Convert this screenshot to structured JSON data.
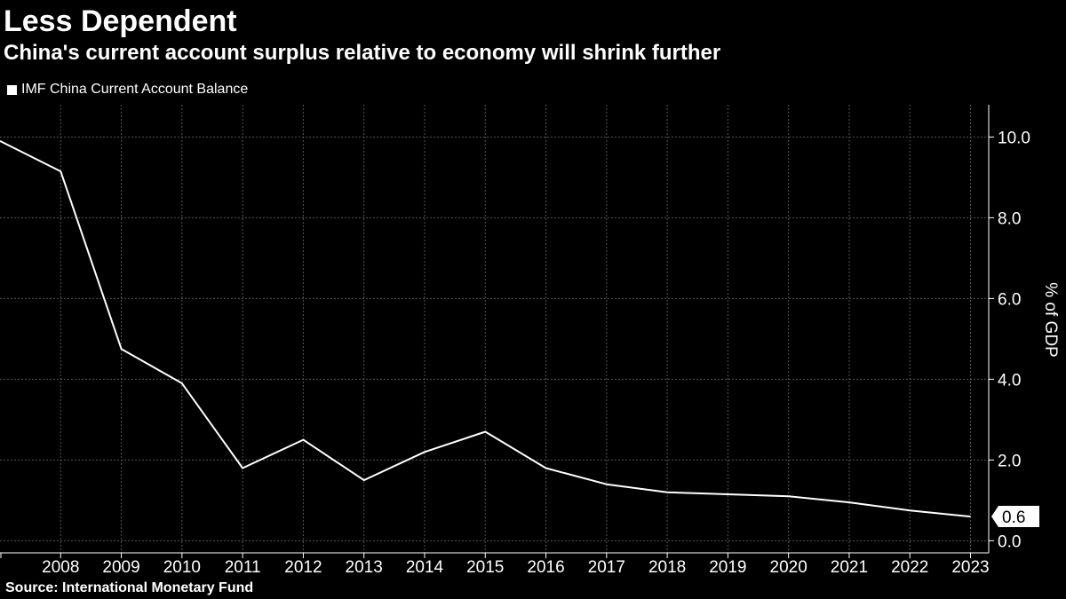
{
  "header": {
    "title": "Less Dependent",
    "subtitle": "China's current account surplus relative to economy will shrink further"
  },
  "footer": {
    "source": "Source: International Monetary Fund"
  },
  "colors": {
    "background": "#000000",
    "series": "#ffffff",
    "grid": "#555555",
    "axis": "#ffffff"
  },
  "chart_data": {
    "type": "line",
    "title": "Less Dependent",
    "subtitle": "China's current account surplus relative to economy will shrink further",
    "xlabel": "",
    "ylabel": "% of GDP",
    "x": [
      2007,
      2008,
      2009,
      2010,
      2011,
      2012,
      2013,
      2014,
      2015,
      2016,
      2017,
      2018,
      2019,
      2020,
      2021,
      2022,
      2023
    ],
    "x_tick_labels": [
      "2008",
      "2009",
      "2010",
      "2011",
      "2012",
      "2013",
      "2014",
      "2015",
      "2016",
      "2017",
      "2018",
      "2019",
      "2020",
      "2021",
      "2022",
      "2023"
    ],
    "y_tick_labels": [
      "0.0",
      "2.0",
      "4.0",
      "6.0",
      "8.0",
      "10.0"
    ],
    "yticks": [
      0,
      2,
      4,
      6,
      8,
      10
    ],
    "ylim": [
      -0.3,
      10.8
    ],
    "xlim": [
      2007,
      2023.3
    ],
    "y_axis_position": "right",
    "legend_position": "top-left",
    "grid": true,
    "series": [
      {
        "name": "IMF China Current Account Balance",
        "values": [
          9.9,
          9.15,
          4.75,
          3.9,
          1.8,
          2.5,
          1.5,
          2.2,
          2.7,
          1.8,
          1.4,
          1.2,
          1.15,
          1.1,
          0.95,
          0.75,
          0.6
        ]
      }
    ],
    "last_value_label": "0.6"
  }
}
